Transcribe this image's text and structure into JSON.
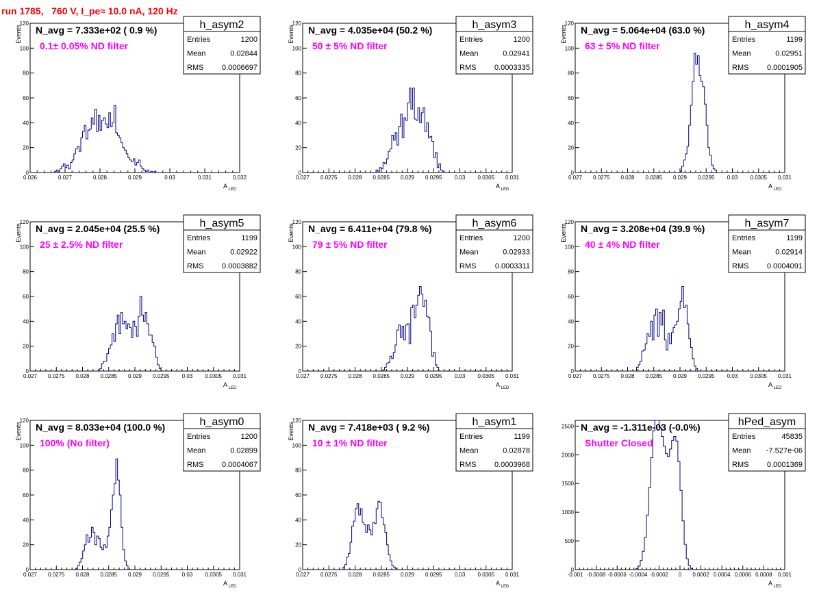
{
  "page": {
    "title": "run 1785,   760 V, I_pe≈ 10.0 nA, 120 Hz"
  },
  "chart_data": [
    {
      "type": "bar",
      "title": "h_asym2",
      "navg": "N_avg = 7.333e+02 ( 0.9 %)",
      "filter": "0.1± 0.05% ND filter",
      "stats": [
        [
          "Entries",
          "1200"
        ],
        [
          "Mean",
          "0.02844"
        ],
        [
          "RMS",
          "0.0006697"
        ]
      ],
      "xlabel": "A",
      "xlabel_sub": "LED",
      "ylabel": "Events",
      "xlim": [
        0.026,
        0.032
      ],
      "ylim": [
        0,
        120
      ],
      "xticks": [
        "0.026",
        "0.027",
        "0.028",
        "0.029",
        "0.03",
        "0.031",
        "0.032"
      ],
      "yticks": [
        "0",
        "20",
        "40",
        "60",
        "80",
        "100",
        "120"
      ],
      "bin_start": 0.0267,
      "bin_width": 5e-05,
      "values": [
        1,
        2,
        1,
        3,
        5,
        7,
        4,
        6,
        3,
        8,
        10,
        15,
        19,
        21,
        17,
        28,
        33,
        38,
        27,
        34,
        35,
        44,
        39,
        51,
        33,
        46,
        34,
        42,
        44,
        39,
        36,
        48,
        37,
        40,
        54,
        32,
        30,
        28,
        24,
        20,
        18,
        15,
        12,
        10,
        9,
        11,
        6,
        8,
        10,
        5,
        3,
        2,
        1,
        2,
        0,
        1,
        0,
        1
      ]
    },
    {
      "type": "bar",
      "title": "h_asym3",
      "navg": "N_avg = 4.035e+04 (50.2 %)",
      "filter": "50 ± 5% ND filter",
      "stats": [
        [
          "Entries",
          "1200"
        ],
        [
          "Mean",
          "0.02941"
        ],
        [
          "RMS",
          "0.0003335"
        ]
      ],
      "xlabel": "A",
      "xlabel_sub": "LED",
      "ylabel": "Events",
      "xlim": [
        0.027,
        0.031
      ],
      "ylim": [
        0,
        120
      ],
      "xticks": [
        "0.027",
        "0.0275",
        "0.028",
        "0.0285",
        "0.029",
        "0.0295",
        "0.03",
        "0.0305",
        "0.031"
      ],
      "yticks": [
        "0",
        "20",
        "40",
        "60",
        "80",
        "100",
        "120"
      ],
      "bin_start": 0.0284,
      "bin_width": 3.33e-05,
      "values": [
        2,
        1,
        4,
        3,
        8,
        7,
        11,
        17,
        19,
        30,
        26,
        32,
        22,
        37,
        47,
        28,
        44,
        42,
        56,
        68,
        51,
        68,
        43,
        42,
        52,
        40,
        48,
        52,
        33,
        40,
        28,
        29,
        25,
        12,
        16,
        4,
        7,
        2,
        1
      ]
    },
    {
      "type": "bar",
      "title": "h_asym4",
      "navg": "N_avg = 5.064e+04 (63.0 %)",
      "filter": "63 ± 5% ND filter",
      "stats": [
        [
          "Entries",
          "1199"
        ],
        [
          "Mean",
          "0.02951"
        ],
        [
          "RMS",
          "0.0001905"
        ]
      ],
      "xlabel": "A",
      "xlabel_sub": "LED",
      "ylabel": "Events",
      "xlim": [
        0.027,
        0.031
      ],
      "ylim": [
        0,
        120
      ],
      "xticks": [
        "0.027",
        "0.0275",
        "0.028",
        "0.0285",
        "0.029",
        "0.0295",
        "0.03",
        "0.0305",
        "0.031"
      ],
      "yticks": [
        "0",
        "20",
        "40",
        "60",
        "80",
        "100",
        "120"
      ],
      "bin_start": 0.029,
      "bin_width": 3.33e-05,
      "values": [
        1,
        5,
        10,
        15,
        21,
        38,
        54,
        73,
        96,
        87,
        94,
        78,
        73,
        69,
        55,
        38,
        20,
        14,
        6,
        3,
        2
      ]
    },
    {
      "type": "bar",
      "title": "h_asym5",
      "navg": "N_avg = 2.045e+04 (25.5 %)",
      "filter": "25 ± 2.5% ND filter",
      "stats": [
        [
          "Entries",
          "1199"
        ],
        [
          "Mean",
          "0.02922"
        ],
        [
          "RMS",
          "0.0003882"
        ]
      ],
      "xlabel": "A",
      "xlabel_sub": "LED",
      "ylabel": "Events",
      "xlim": [
        0.027,
        0.031
      ],
      "ylim": [
        0,
        120
      ],
      "xticks": [
        "0.027",
        "0.0275",
        "0.028",
        "0.0285",
        "0.029",
        "0.0295",
        "0.03",
        "0.0305",
        "0.031"
      ],
      "yticks": [
        "0",
        "20",
        "40",
        "60",
        "80",
        "100",
        "120"
      ],
      "bin_start": 0.02833,
      "bin_width": 3.33e-05,
      "values": [
        2,
        6,
        8,
        8,
        14,
        18,
        21,
        30,
        24,
        38,
        45,
        30,
        47,
        38,
        40,
        34,
        38,
        35,
        27,
        40,
        36,
        28,
        44,
        60,
        45,
        40,
        47,
        38,
        29,
        29,
        23,
        20,
        11,
        5,
        2
      ]
    },
    {
      "type": "bar",
      "title": "h_asym6",
      "navg": "N_avg = 6.411e+04 (79.8 %)",
      "filter": "79 ± 5% ND filter",
      "stats": [
        [
          "Entries",
          "1200"
        ],
        [
          "Mean",
          "0.02933"
        ],
        [
          "RMS",
          "0.0003311"
        ]
      ],
      "xlabel": "A",
      "xlabel_sub": "LED",
      "ylabel": "Events",
      "xlim": [
        0.027,
        0.031
      ],
      "ylim": [
        0,
        120
      ],
      "xticks": [
        "0.027",
        "0.0275",
        "0.028",
        "0.0285",
        "0.029",
        "0.0295",
        "0.03",
        "0.0305",
        "0.031"
      ],
      "yticks": [
        "0",
        "20",
        "40",
        "60",
        "80",
        "100",
        "120"
      ],
      "bin_start": 0.02853,
      "bin_width": 3.33e-05,
      "values": [
        1,
        3,
        6,
        7,
        12,
        10,
        15,
        21,
        33,
        37,
        27,
        36,
        25,
        37,
        38,
        22,
        51,
        53,
        43,
        53,
        61,
        68,
        62,
        52,
        57,
        44,
        43,
        32,
        12,
        15,
        5,
        3
      ]
    },
    {
      "type": "bar",
      "title": "h_asym7",
      "navg": "N_avg = 3.208e+04 (39.9 %)",
      "filter": "40 ± 4% ND filter",
      "stats": [
        [
          "Entries",
          "1199"
        ],
        [
          "Mean",
          "0.02914"
        ],
        [
          "RMS",
          "0.0004091"
        ]
      ],
      "xlabel": "A",
      "xlabel_sub": "LED",
      "ylabel": "Events",
      "xlim": [
        0.027,
        0.031
      ],
      "ylim": [
        0,
        120
      ],
      "xticks": [
        "0.027",
        "0.0275",
        "0.028",
        "0.0285",
        "0.029",
        "0.0295",
        "0.03",
        "0.0305",
        "0.031"
      ],
      "yticks": [
        "0",
        "20",
        "40",
        "60",
        "80",
        "100",
        "120"
      ],
      "bin_start": 0.02817,
      "bin_width": 3.33e-05,
      "values": [
        3,
        5,
        8,
        16,
        17,
        22,
        30,
        28,
        40,
        25,
        45,
        50,
        28,
        47,
        37,
        49,
        25,
        17,
        30,
        22,
        31,
        35,
        37,
        40,
        50,
        56,
        68,
        51,
        53,
        38,
        26,
        19,
        10,
        4,
        2
      ]
    },
    {
      "type": "bar",
      "title": "h_asym0",
      "navg": "N_avg = 8.033e+04 (100.0 %)",
      "filter": "100% (No filter)",
      "stats": [
        [
          "Entries",
          "1200"
        ],
        [
          "Mean",
          "0.02899"
        ],
        [
          "RMS",
          "0.0004067"
        ]
      ],
      "xlabel": "A",
      "xlabel_sub": "LED",
      "ylabel": "Events",
      "xlim": [
        0.027,
        0.031
      ],
      "ylim": [
        0,
        120
      ],
      "xticks": [
        "0.027",
        "0.0275",
        "0.028",
        "0.0285",
        "0.029",
        "0.0295",
        "0.03",
        "0.0305",
        "0.031"
      ],
      "yticks": [
        "0",
        "20",
        "40",
        "60",
        "80",
        "100",
        "120"
      ],
      "bin_start": 0.02787,
      "bin_width": 3.33e-05,
      "values": [
        1,
        3,
        6,
        9,
        15,
        20,
        28,
        22,
        26,
        34,
        30,
        20,
        27,
        25,
        18,
        16,
        20,
        18,
        27,
        34,
        48,
        60,
        69,
        89,
        72,
        60,
        34,
        16,
        7,
        3
      ]
    },
    {
      "type": "bar",
      "title": "h_asym1",
      "navg": "N_avg = 7.418e+03 ( 9.2 %)",
      "filter": "10 ± 1% ND filter",
      "stats": [
        [
          "Entries",
          "1199"
        ],
        [
          "Mean",
          "0.02878"
        ],
        [
          "RMS",
          "0.0003968"
        ]
      ],
      "xlabel": "A",
      "xlabel_sub": "LED",
      "ylabel": "Events",
      "xlim": [
        0.027,
        0.031
      ],
      "ylim": [
        0,
        120
      ],
      "xticks": [
        "0.027",
        "0.0275",
        "0.028",
        "0.0285",
        "0.029",
        "0.0295",
        "0.03",
        "0.0305",
        "0.031"
      ],
      "yticks": [
        "0",
        "20",
        "40",
        "60",
        "80",
        "100",
        "120"
      ],
      "bin_start": 0.02777,
      "bin_width": 3.33e-05,
      "values": [
        2,
        4,
        10,
        13,
        22,
        35,
        39,
        49,
        53,
        44,
        49,
        38,
        36,
        30,
        36,
        32,
        28,
        38,
        37,
        49,
        55,
        54,
        42,
        36,
        30,
        20,
        12,
        7,
        3,
        2,
        1
      ]
    },
    {
      "type": "bar",
      "title": "hPed_asym",
      "navg": "N_avg = -1.311e-03 (-0.0%)",
      "filter": "Shutter Closed",
      "stats": [
        [
          "Entries",
          "45835"
        ],
        [
          "Mean",
          "-7.527e-06"
        ],
        [
          "RMS",
          "0.0001369"
        ]
      ],
      "xlabel": "A",
      "xlabel_sub": "LED",
      "ylabel": "",
      "xlim": [
        -0.001,
        0.001
      ],
      "ylim": [
        0,
        2600
      ],
      "xticks": [
        "-0.001",
        "-0.0008",
        "-0.0006",
        "-0.0004",
        "-0.0002",
        "0",
        "0.0002",
        "0.0004",
        "0.0006",
        "0.0008",
        "0.001"
      ],
      "ytick_values": [
        0,
        500,
        1000,
        1500,
        2000,
        2500
      ],
      "yticks": [
        "0",
        "500",
        "1000",
        "1500",
        "2000",
        "2500"
      ],
      "bin_start": -0.00042,
      "bin_width": 2e-05,
      "values": [
        20,
        60,
        160,
        320,
        560,
        950,
        1430,
        1950,
        2420,
        2640,
        2600,
        2480,
        2320,
        2150,
        2020,
        1970,
        2100,
        2250,
        2320,
        2240,
        1880,
        1380,
        850,
        440,
        190,
        70,
        20
      ]
    }
  ]
}
